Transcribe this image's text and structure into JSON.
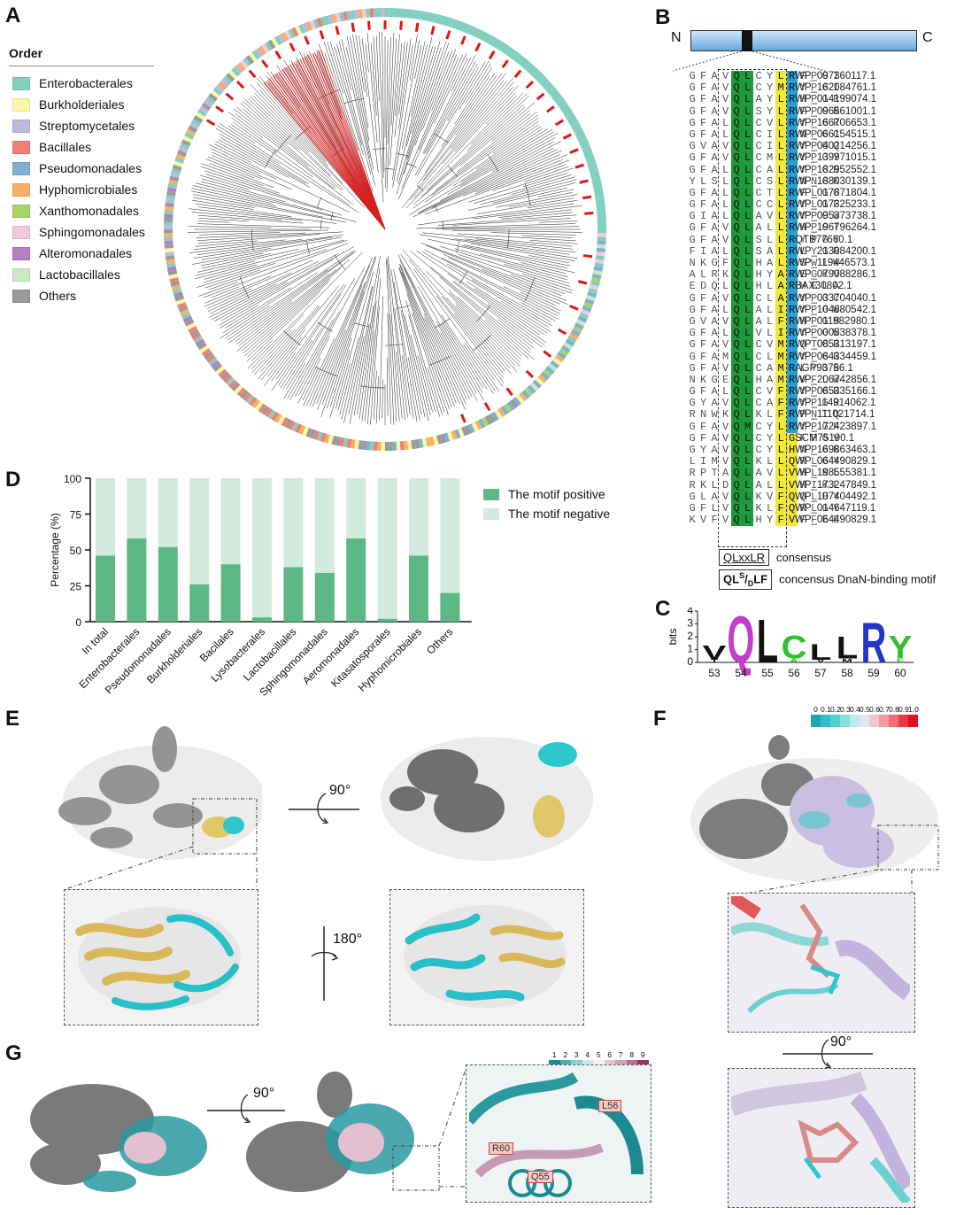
{
  "panels": {
    "a": "A",
    "b": "B",
    "c": "C",
    "d": "D",
    "e": "E",
    "f": "F",
    "g": "G"
  },
  "legend": {
    "title": "Order",
    "items": [
      {
        "label": "Enterobacterales",
        "color": "#82cfc0"
      },
      {
        "label": "Burkholderiales",
        "color": "#fbf7a6"
      },
      {
        "label": "Streptomycetales",
        "color": "#bfb9dc"
      },
      {
        "label": "Bacillales",
        "color": "#f08075"
      },
      {
        "label": "Pseudomonadales",
        "color": "#7fb0d4"
      },
      {
        "label": "Hyphomicrobiales",
        "color": "#f7b065"
      },
      {
        "label": "Xanthomonadales",
        "color": "#a9d46a"
      },
      {
        "label": "Sphingomonadales",
        "color": "#f6c8dd"
      },
      {
        "label": "Alteromonadales",
        "color": "#b380c2"
      },
      {
        "label": "Lactobacillales",
        "color": "#c9eac2"
      },
      {
        "label": "Others",
        "color": "#9a9a9a"
      }
    ]
  },
  "domain_bar": {
    "n": "N",
    "c": "C"
  },
  "alignment": {
    "rows": [
      {
        "seq": "GFAVQLCYLRFPGI",
        "acc": "WP_097360117.1"
      },
      {
        "seq": "GFAVQLCYMRYPGI",
        "acc": "WP_162084761.1"
      },
      {
        "seq": "GFAVQLAYLRHPGR",
        "acc": "WP_014199074.1"
      },
      {
        "seq": "GFAVQLSYLRFPGR",
        "acc": "WP_096561001.1"
      },
      {
        "seq": "GFALQLCVLRYPGR",
        "acc": "WP_166706653.1"
      },
      {
        "seq": "GFALQLCILRNPGC",
        "acc": "WP_066154515.1"
      },
      {
        "seq": "GVAVQLCILRYPGQ",
        "acc": "WP_040214256.1"
      },
      {
        "seq": "GFAVQLCMLRYPGY",
        "acc": "WP_139971015.1"
      },
      {
        "seq": "GFALQLCALRYPGR",
        "acc": "WP_182952552.1"
      },
      {
        "seq": "YLSLQLCSLRNNGK",
        "acc": "WP_188030139.1"
      },
      {
        "seq": "GFALQLCTLRFLGG",
        "acc": "WP_017871804.1"
      },
      {
        "seq": "GFALQLCCLRYLGF",
        "acc": "WP_017325233.1"
      },
      {
        "seq": "GIALQLAVLRYPGW",
        "acc": "WP_095373738.1"
      },
      {
        "seq": "GFAVQLALLRHPGT",
        "acc": "WP_196796264.1"
      },
      {
        "seq": "GFAVQLSLLRYPGY",
        "acc": "QTB77660.1"
      },
      {
        "seq": "FIALQLSALRLYGR",
        "acc": "WP_213084200.1"
      },
      {
        "seq": "NKGFQLHALRSWLW",
        "acc": "WP_119446573.1"
      },
      {
        "seq": "ALRKQLHYAREGKV",
        "acc": "WP_079088286.1"
      },
      {
        "seq": "EDQLQLHLARHELA",
        "acc": "BAX30802.1"
      },
      {
        "seq": "GFAVQLCLARYPGC",
        "acc": "WP_033704040.1"
      },
      {
        "seq": "GFALQLALIRYPGW",
        "acc": "WP_104680542.1"
      },
      {
        "seq": "GVAVQLALFRHPGM",
        "acc": "WP_011982980.1"
      },
      {
        "seq": "GFALQLVLIRYPGW",
        "acc": "WP_000538378.1"
      },
      {
        "seq": "GFAVQLCVMRQTGR",
        "acc": "WP_085313197.1"
      },
      {
        "seq": "GFAMQLCLMRYPGR",
        "acc": "WP_064334459.1"
      },
      {
        "seq": "GFAVQLCAMRLYGR",
        "acc": "AGP93756.1"
      },
      {
        "seq": "NKGEQLHAMRVFLW",
        "acc": "WP_206742856.1"
      },
      {
        "seq": "GFALQLCVFRYPGR",
        "acc": "WP_065335166.1"
      },
      {
        "seq": "GYAVQLCAFRYPGR",
        "acc": "WP_114914062.1"
      },
      {
        "seq": "RNWKQLKLFRPNTQ",
        "acc": "WP_111021714.1"
      },
      {
        "seq": "GFAVQMCYLRYPGF",
        "acc": "WP_172423897.1"
      },
      {
        "seq": "GFAVQLCYLGFPGV",
        "acc": "SCM75190.1"
      },
      {
        "seq": "GYAVQLCYLHNPGR",
        "acc": "WP_169863463.1"
      },
      {
        "seq": "LIMVQLKLLQRLGY",
        "acc": "WP_064490829.1"
      },
      {
        "seq": "RPTAQLAVLVHLKL",
        "acc": "WP_198555381.1"
      },
      {
        "seq": "RKLDQLALLVHIKL",
        "acc": "WP_173247849.1"
      },
      {
        "seq": "GLAVQLKVFQQLHY",
        "acc": "WP_107404492.1"
      },
      {
        "seq": "GFLVQLKLFQRLGY",
        "acc": "WP_014647119.1"
      },
      {
        "seq": "KVFVQLHYFVFFEE",
        "acc": "WP_064490829.1"
      }
    ],
    "consensus_box": "QLxxLR",
    "consensus_label": "consensus",
    "dnan_box_main": "QL",
    "dnan_box_sup": "S",
    "dnan_box_slash": "/",
    "dnan_box_sub": "D",
    "dnan_box_tail": "LF",
    "dnan_label": "concensus DnaN-binding motif"
  },
  "logo": {
    "ylabel": "bits",
    "yticks": [
      "0",
      "1",
      "2",
      "3",
      "4"
    ],
    "positions": [
      "53",
      "54",
      "55",
      "56",
      "57",
      "58",
      "59",
      "60"
    ],
    "letters": [
      {
        "pos": "53",
        "top": "V",
        "bottom": "T",
        "color": "#111111",
        "bits": 1.2
      },
      {
        "pos": "54",
        "top": "Q",
        "bottom": "",
        "color": "#c43ccb",
        "bits": 3.9
      },
      {
        "pos": "55",
        "top": "L",
        "bottom": "",
        "color": "#111111",
        "bits": 3.6
      },
      {
        "pos": "56",
        "top": "C",
        "bottom": "A",
        "color": "#2fc12f",
        "bits": 1.9
      },
      {
        "pos": "57",
        "top": "L",
        "bottom": "V",
        "color": "#111111",
        "bits": 1.3
      },
      {
        "pos": "58",
        "top": "L",
        "bottom": "M",
        "color": "#111111",
        "bits": 1.8
      },
      {
        "pos": "59",
        "top": "R",
        "bottom": "",
        "color": "#2433c8",
        "bits": 3.3
      },
      {
        "pos": "60",
        "top": "Y",
        "bottom": "F",
        "color": "#2fc12f",
        "bits": 1.9
      }
    ]
  },
  "chart_data": {
    "type": "bar",
    "stacked": true,
    "categories": [
      "In total",
      "Enterobacterales",
      "Pseudomonadales",
      "Burkholderiales",
      "Bacilales",
      "Lysobacterales",
      "Lactobacillales",
      "Sphingomonadales",
      "Aeromonadales",
      "Kitasatosporales",
      "Hyphomicrobiales",
      "Others"
    ],
    "series": [
      {
        "name": "The motif positive",
        "color": "#5cb884",
        "values": [
          46,
          58,
          52,
          26,
          40,
          3,
          38,
          34,
          58,
          2,
          46,
          20
        ]
      },
      {
        "name": "The motif negative",
        "color": "#d3ebdf",
        "values": [
          54,
          42,
          48,
          74,
          60,
          97,
          62,
          66,
          42,
          98,
          54,
          80
        ]
      }
    ],
    "ylabel": "Percentage (%)",
    "yticks": [
      0,
      25,
      50,
      75,
      100
    ],
    "ylim": [
      0,
      100
    ]
  },
  "panel_e": {
    "rot1": "90°",
    "rot2": "180°"
  },
  "panel_f": {
    "scale_labels": [
      "0",
      "0.1",
      "0.2",
      "0.3",
      "0.4",
      "0.5",
      "0.6",
      "0.7",
      "0.8",
      "0.9",
      "1.0"
    ],
    "scale_colors": [
      "#1aa5b0",
      "#2fc0c7",
      "#52d0d2",
      "#86dede",
      "#b9ecec",
      "#e3e6f2",
      "#f2c6cc",
      "#f29aa2",
      "#f06d78",
      "#ea3a48",
      "#e01020"
    ],
    "rot": "90°"
  },
  "panel_g": {
    "scale_labels": [
      "1",
      "2",
      "3",
      "4",
      "5",
      "6",
      "7",
      "8",
      "9"
    ],
    "scale_colors": [
      "#0f8e95",
      "#4cb0b5",
      "#8ccfd1",
      "#c9e8e8",
      "#f4f0f2",
      "#e6c3d2",
      "#d39bb6",
      "#bb6b96",
      "#9a2b6f"
    ],
    "rot": "90°",
    "residues": [
      "L56",
      "R60",
      "Q55"
    ]
  }
}
